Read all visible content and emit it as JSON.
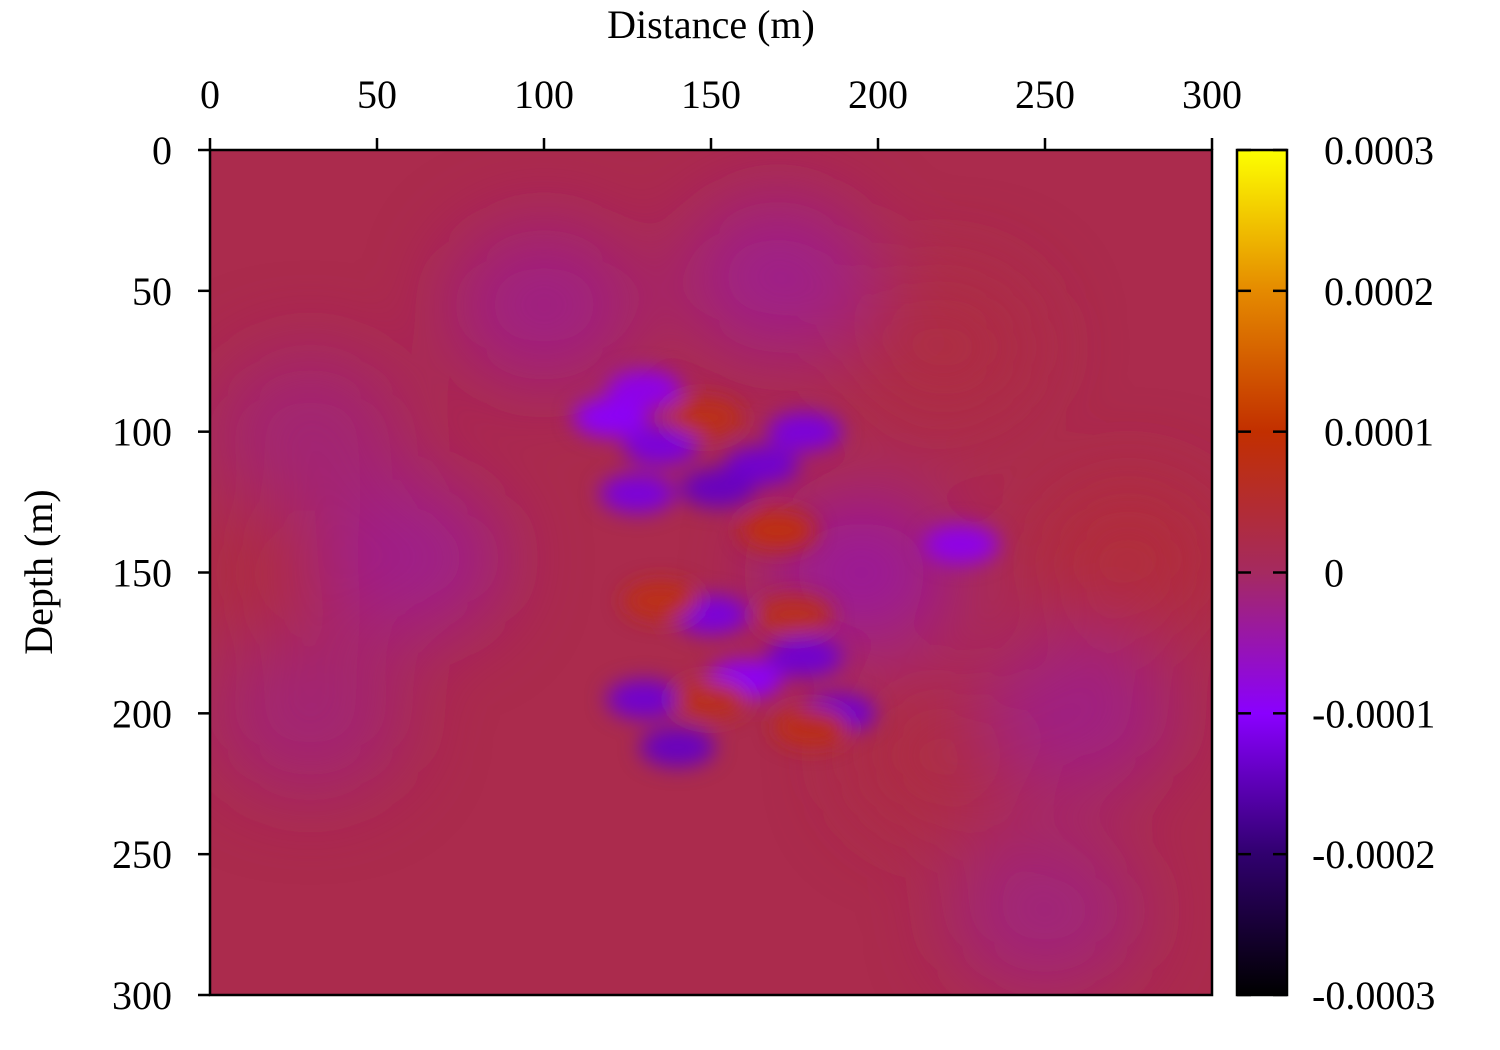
{
  "chart_data": {
    "type": "heatmap",
    "title": "",
    "xlabel": "Distance (m)",
    "ylabel": "Depth (m)",
    "x_axis_position": "top",
    "y_axis_inverted": true,
    "xlim": [
      0,
      300
    ],
    "ylim": [
      0,
      300
    ],
    "xticks": [
      "0",
      "50",
      "100",
      "150",
      "200",
      "250",
      "300"
    ],
    "yticks": [
      "0",
      "50",
      "100",
      "150",
      "200",
      "250",
      "300"
    ],
    "colorbar": {
      "range": [
        -0.0003,
        0.0003
      ],
      "ticks": [
        "0.0003",
        "0.0002",
        "0.0001",
        "0",
        "-0.0001",
        "-0.0002",
        "-0.0003"
      ],
      "palette": [
        "#000000",
        "#30006e",
        "#8a00ff",
        "#a52a60",
        "#c22f00",
        "#e58a00",
        "#fdff00"
      ]
    },
    "background_value": 2e-05,
    "features": [
      {
        "x": 120,
        "y": 95,
        "value": -0.0001
      },
      {
        "x": 130,
        "y": 85,
        "value": -9e-05
      },
      {
        "x": 135,
        "y": 105,
        "value": -0.00012
      },
      {
        "x": 165,
        "y": 112,
        "value": -0.00013
      },
      {
        "x": 178,
        "y": 100,
        "value": -0.00012
      },
      {
        "x": 152,
        "y": 120,
        "value": -0.00014
      },
      {
        "x": 128,
        "y": 122,
        "value": -0.00012
      },
      {
        "x": 150,
        "y": 165,
        "value": -0.00012
      },
      {
        "x": 178,
        "y": 180,
        "value": -0.00013
      },
      {
        "x": 188,
        "y": 200,
        "value": -0.00013
      },
      {
        "x": 130,
        "y": 195,
        "value": -0.00013
      },
      {
        "x": 140,
        "y": 212,
        "value": -0.00014
      },
      {
        "x": 160,
        "y": 188,
        "value": -0.0001
      },
      {
        "x": 148,
        "y": 95,
        "value": 8e-05
      },
      {
        "x": 170,
        "y": 135,
        "value": 9e-05
      },
      {
        "x": 135,
        "y": 160,
        "value": 8e-05
      },
      {
        "x": 175,
        "y": 165,
        "value": 7e-05
      },
      {
        "x": 150,
        "y": 195,
        "value": 7e-05
      },
      {
        "x": 180,
        "y": 205,
        "value": 8e-05
      },
      {
        "x": 225,
        "y": 140,
        "value": -9e-05
      },
      {
        "x": 195,
        "y": 150,
        "value": -4e-05
      },
      {
        "x": 275,
        "y": 145,
        "value": 4e-05
      },
      {
        "x": 30,
        "y": 150,
        "value": 3.5e-05
      },
      {
        "x": 60,
        "y": 145,
        "value": -3e-05
      },
      {
        "x": 100,
        "y": 55,
        "value": -2.5e-05
      },
      {
        "x": 170,
        "y": 45,
        "value": -3e-05
      },
      {
        "x": 220,
        "y": 70,
        "value": 3e-05
      },
      {
        "x": 220,
        "y": 215,
        "value": 3e-05
      },
      {
        "x": 260,
        "y": 200,
        "value": -2.5e-05
      },
      {
        "x": 250,
        "y": 270,
        "value": -2e-05
      },
      {
        "x": 30,
        "y": 100,
        "value": -1.5e-05
      },
      {
        "x": 30,
        "y": 200,
        "value": -1.5e-05
      }
    ]
  }
}
